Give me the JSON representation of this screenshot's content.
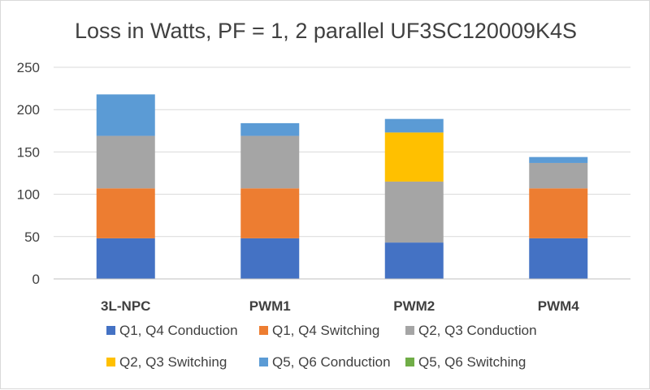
{
  "chart_data": {
    "type": "bar",
    "stacked": true,
    "title": "Loss in Watts, PF = 1, 2 parallel UF3SC120009K4S",
    "xlabel": "",
    "ylabel": "",
    "ylim": [
      0,
      250
    ],
    "yticks": [
      0,
      50,
      100,
      150,
      200,
      250
    ],
    "grid": true,
    "legend_position": "bottom",
    "categories": [
      "3L-NPC",
      "PWM1",
      "PWM2",
      "PWM4"
    ],
    "series": [
      {
        "name": "Q1, Q4 Conduction",
        "color": "#4472C4",
        "values": [
          48,
          48,
          43,
          48
        ]
      },
      {
        "name": "Q1, Q4 Switching",
        "color": "#ED7D31",
        "values": [
          59,
          59,
          0,
          59
        ]
      },
      {
        "name": "Q2, Q3 Conduction",
        "color": "#A5A5A5",
        "values": [
          62,
          62,
          72,
          30
        ]
      },
      {
        "name": "Q2, Q3 Switching",
        "color": "#FFC000",
        "values": [
          0,
          0,
          58,
          0
        ]
      },
      {
        "name": "Q5, Q6 Conduction",
        "color": "#5B9BD5",
        "values": [
          49,
          15,
          16,
          7
        ]
      },
      {
        "name": "Q5, Q6 Switching",
        "color": "#70AD47",
        "values": [
          0,
          0,
          0,
          0
        ]
      }
    ]
  }
}
